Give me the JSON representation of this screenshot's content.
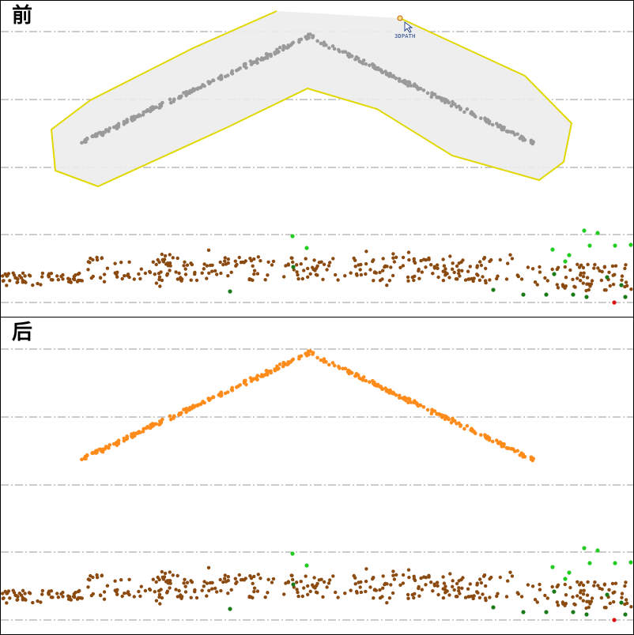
{
  "panels": {
    "before": {
      "label": "前"
    },
    "after": {
      "label": "后"
    }
  },
  "cursor": {
    "tool_label": "3DPATH",
    "icon": "arrow-pointer-icon"
  },
  "colors": {
    "grid_line": "#9a9a9a",
    "panel_border": "#000000",
    "selection_fill": "#ececec",
    "selection_stroke": "#e0d800",
    "selected_points": "#9a9a9a",
    "classified_points": "#ff8c1a",
    "ground_points": "#8b4a10",
    "vegetation_points": "#22cc22",
    "dark_vegetation_points": "#1a7a1a",
    "low_points": "#dd1111"
  }
}
